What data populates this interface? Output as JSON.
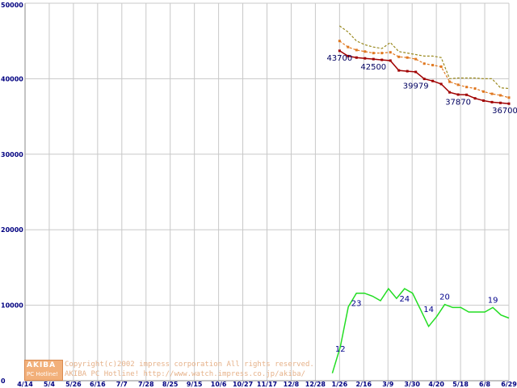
{
  "chart_data": {
    "type": "line",
    "ylim": [
      0,
      50000
    ],
    "y_ticks": [
      "0",
      "10000",
      "20000",
      "30000",
      "40000",
      "50000"
    ],
    "x_tick_labels": [
      "4/14",
      "5/4",
      "5/26",
      "6/16",
      "7/7",
      "7/28",
      "8/25",
      "9/15",
      "10/6",
      "10/27",
      "11/17",
      "12/8",
      "12/28",
      "1/26",
      "2/16",
      "3/9",
      "3/30",
      "4/20",
      "5/18",
      "6/8",
      "6/29"
    ],
    "grid": true,
    "price_series": [
      {
        "color": "#9a8a20",
        "style": "dashed",
        "values": [
          47000,
          46200,
          45000,
          44500,
          44200,
          44000,
          44800,
          43600,
          43400,
          43200,
          43000,
          43000,
          42800,
          40000,
          40100,
          40100,
          40100,
          40000,
          40000,
          38800,
          38700
        ]
      },
      {
        "color": "#e07820",
        "style": "dashed-markers",
        "values": [
          45000,
          44200,
          43800,
          43600,
          43400,
          43400,
          43500,
          42900,
          42800,
          42600,
          42000,
          41800,
          41600,
          39600,
          39200,
          38900,
          38700,
          38300,
          38000,
          37800,
          37500
        ]
      },
      {
        "color": "#a00000",
        "style": "solid-markers",
        "values": [
          43700,
          43000,
          42800,
          42700,
          42600,
          42500,
          42400,
          41100,
          41000,
          40900,
          39979,
          39700,
          39300,
          38200,
          37900,
          37870,
          37400,
          37100,
          36900,
          36800,
          36700
        ]
      }
    ],
    "price_labels": [
      "43700",
      "42500",
      "39979",
      "37870",
      "36700"
    ],
    "count_series": {
      "color": "#22dd22",
      "values": [
        1000,
        4500,
        9800,
        11600,
        11600,
        11200,
        10600,
        12200,
        10900,
        12200,
        11600,
        9400,
        7200,
        8500,
        10100,
        9700,
        9700,
        9100,
        9100,
        9100,
        9700,
        8700,
        8300
      ]
    },
    "count_labels": [
      "12",
      "23",
      "24",
      "14",
      "20",
      "19"
    ]
  },
  "credit": {
    "logo_top": "AKIBA",
    "logo_bottom": "PC Hotline!",
    "line1": "Copyright(c)2002 impress corporation All rights reserved.",
    "line2": "AKIBA PC Hotline!  http://www.watch.impress.co.jp/akiba/"
  }
}
